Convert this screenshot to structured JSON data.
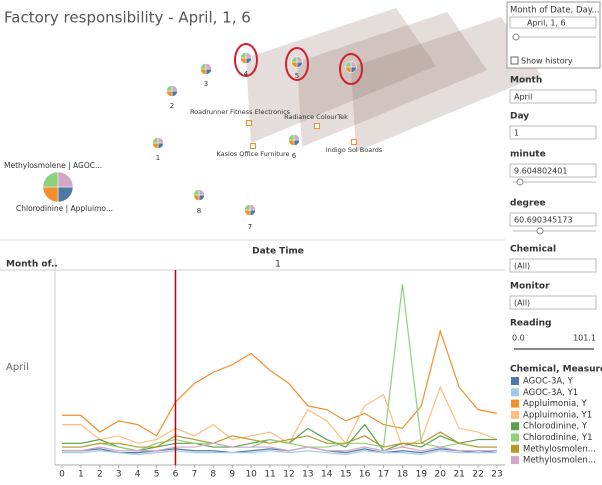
{
  "title": "Factory responsibility - April, 1, 6",
  "map": {
    "pie_labels": [
      "1",
      "2",
      "3",
      "4",
      "5",
      "6",
      "7",
      "8"
    ],
    "factories": [
      "Roadrunner Fitness Electronics",
      "Radiance ColourTek",
      "Kasios Office Furniture",
      "Indigo Sol Boards"
    ],
    "sensors": [
      "Methylosmolene | AGOC...",
      "Chlorodinine | Appluimo..."
    ]
  },
  "panel": {
    "page_title": "Month of Date, Day...",
    "page_value": "April, 1, 6",
    "show_history": "Show history",
    "month_label": "Month",
    "month_value": "April",
    "day_label": "Day",
    "day_value": "1",
    "minute_label": "minute",
    "minute_value": "9.604802401",
    "degree_label": "degree",
    "degree_value": "60.690345173",
    "chemical_label": "Chemical",
    "chemical_value": "(All)",
    "monitor_label": "Monitor",
    "monitor_value": "(All)",
    "reading_label": "Reading",
    "reading_min": "0.0",
    "reading_max": "101.1",
    "legend_title": "Chemical, Measure ..."
  },
  "chart_data": {
    "type": "line",
    "x_label": "Date Time",
    "row_header": "Month of..",
    "column_value": "1",
    "row_value": "April",
    "x": [
      0,
      1,
      2,
      3,
      4,
      5,
      6,
      7,
      8,
      9,
      10,
      11,
      12,
      13,
      14,
      15,
      16,
      17,
      18,
      19,
      20,
      21,
      22,
      23
    ],
    "xlim": [
      0,
      23
    ],
    "ylim": [
      0,
      100
    ],
    "marker_x": 6,
    "marker_color": "#c00000",
    "series": [
      {
        "name": "AGOC-3A, Y",
        "color": "#4e79a7",
        "values": [
          6,
          6,
          7,
          5,
          5,
          6,
          7,
          6,
          6,
          5,
          6,
          7,
          6,
          8,
          6,
          5,
          7,
          5,
          6,
          5,
          7,
          6,
          5,
          6
        ]
      },
      {
        "name": "AGOC-3A, Y1",
        "color": "#a0cbe8",
        "values": [
          5,
          5,
          6,
          5,
          4,
          5,
          6,
          5,
          5,
          5,
          5,
          6,
          5,
          6,
          5,
          4,
          6,
          5,
          5,
          4,
          6,
          5,
          5,
          5
        ]
      },
      {
        "name": "Appluimonia, Y",
        "color": "#f28e2b",
        "values": [
          25,
          25,
          16,
          22,
          20,
          14,
          32,
          42,
          48,
          52,
          58,
          49,
          42,
          30,
          28,
          22,
          26,
          20,
          18,
          30,
          70,
          40,
          28,
          26
        ]
      },
      {
        "name": "Appluimonia, Y1",
        "color": "#ffbe7d",
        "values": [
          20,
          20,
          12,
          14,
          10,
          12,
          18,
          14,
          20,
          12,
          14,
          16,
          10,
          28,
          22,
          10,
          30,
          36,
          8,
          12,
          40,
          18,
          16,
          12
        ]
      },
      {
        "name": "Chlorodinine, Y",
        "color": "#59a14f",
        "values": [
          10,
          10,
          12,
          8,
          6,
          8,
          10,
          10,
          8,
          8,
          10,
          12,
          10,
          18,
          12,
          8,
          20,
          6,
          10,
          8,
          14,
          10,
          12,
          12
        ]
      },
      {
        "name": "Chlorodinine, Y1",
        "color": "#8cd17d",
        "values": [
          8,
          8,
          10,
          8,
          6,
          10,
          12,
          10,
          10,
          8,
          8,
          12,
          10,
          8,
          8,
          10,
          10,
          8,
          95,
          10,
          8,
          10,
          8,
          8
        ]
      },
      {
        "name": "Methylosmolen...",
        "color": "#b6992d",
        "values": [
          8,
          8,
          10,
          10,
          8,
          8,
          14,
          12,
          10,
          14,
          12,
          10,
          12,
          14,
          10,
          10,
          14,
          8,
          10,
          10,
          16,
          10,
          8,
          8
        ]
      },
      {
        "name": "Methylosmolen...",
        "color": "#d4a6c8",
        "values": [
          6,
          6,
          8,
          6,
          6,
          6,
          8,
          8,
          10,
          8,
          8,
          8,
          6,
          8,
          6,
          6,
          8,
          6,
          8,
          6,
          8,
          6,
          6,
          6
        ]
      }
    ]
  }
}
